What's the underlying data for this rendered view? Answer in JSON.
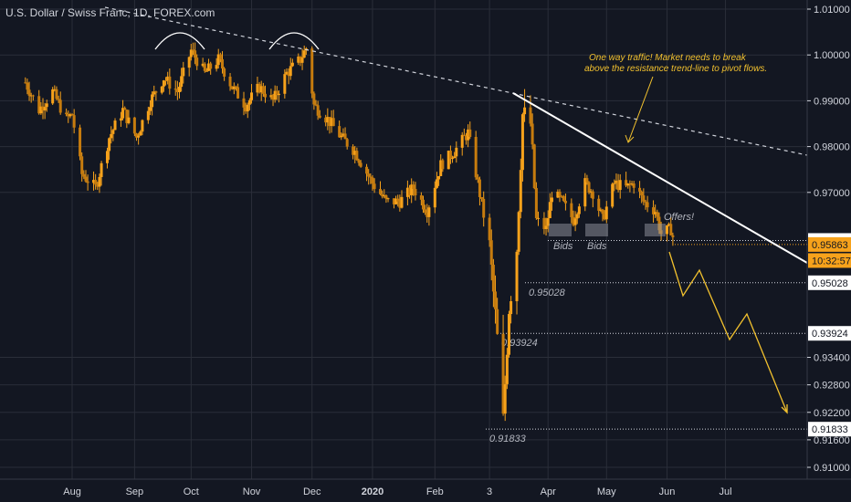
{
  "header": {
    "title": "U.S. Dollar / Swiss Franc, 1D, FOREX.com"
  },
  "price_axis": {
    "ticks": [
      "1.01000",
      "1.00000",
      "0.99000",
      "0.98000",
      "0.97000",
      "0.95951",
      "0.95863",
      "10:32:57",
      "0.95028",
      "0.93924",
      "0.93400",
      "0.92800",
      "0.92200",
      "0.91833",
      "0.91600",
      "0.91000"
    ]
  },
  "time_axis": {
    "labels": [
      "Aug",
      "Sep",
      "Oct",
      "Nov",
      "Dec",
      "2020",
      "Feb",
      "3",
      "Apr",
      "May",
      "Jun",
      "Jul"
    ]
  },
  "annotations": {
    "note_line1": "One way traffic! Market needs to break",
    "note_line2": "above the resistance trend-line to pivot flows.",
    "bids_1": "Bids",
    "bids_2": "Bids",
    "offers": "Offers!"
  },
  "colors": {
    "background": "#131722",
    "candle": "#f7a21b",
    "trendline": "#ffffff",
    "projection": "#f2c12e",
    "current_price_tag": "#f7a21b"
  },
  "chart_data": {
    "type": "candlestick",
    "title": "U.S. Dollar / Swiss Franc, 1D, FOREX.com",
    "ylim": [
      0.9075,
      1.0125
    ],
    "x_ticks": [
      "Aug",
      "Sep",
      "Oct",
      "Nov",
      "Dec",
      "2020",
      "Feb",
      "3",
      "Apr",
      "May",
      "Jun",
      "Jul"
    ],
    "levels": [
      {
        "label": "0.95951",
        "value": 0.95951,
        "line_label": ""
      },
      {
        "label": "0.95028",
        "value": 0.95028,
        "line_label": "0.95028"
      },
      {
        "label": "0.93924",
        "value": 0.93924,
        "line_label": "0.93924"
      },
      {
        "label": "0.91833",
        "value": 0.91833,
        "line_label": "0.91833"
      }
    ],
    "current_price": 0.95863,
    "countdown": "10:32:57",
    "close_path": [
      {
        "date": "2019-07-08",
        "close": 0.994
      },
      {
        "date": "2019-07-15",
        "close": 0.988
      },
      {
        "date": "2019-07-22",
        "close": 0.992
      },
      {
        "date": "2019-07-29",
        "close": 0.986
      },
      {
        "date": "2019-08-01",
        "close": 0.987
      },
      {
        "date": "2019-08-06",
        "close": 0.974
      },
      {
        "date": "2019-08-13",
        "close": 0.971
      },
      {
        "date": "2019-08-20",
        "close": 0.982
      },
      {
        "date": "2019-08-27",
        "close": 0.988
      },
      {
        "date": "2019-09-03",
        "close": 0.982
      },
      {
        "date": "2019-09-10",
        "close": 0.99
      },
      {
        "date": "2019-09-17",
        "close": 0.995
      },
      {
        "date": "2019-09-24",
        "close": 0.992
      },
      {
        "date": "2019-10-01",
        "close": 1.001
      },
      {
        "date": "2019-10-08",
        "close": 0.996
      },
      {
        "date": "2019-10-15",
        "close": 0.999
      },
      {
        "date": "2019-10-22",
        "close": 0.993
      },
      {
        "date": "2019-10-29",
        "close": 0.989
      },
      {
        "date": "2019-11-05",
        "close": 0.993
      },
      {
        "date": "2019-11-12",
        "close": 0.99
      },
      {
        "date": "2019-11-19",
        "close": 0.996
      },
      {
        "date": "2019-11-26",
        "close": 0.999
      },
      {
        "date": "2019-11-29",
        "close": 1.0015
      },
      {
        "date": "2019-12-03",
        "close": 0.989
      },
      {
        "date": "2019-12-10",
        "close": 0.986
      },
      {
        "date": "2019-12-17",
        "close": 0.982
      },
      {
        "date": "2019-12-24",
        "close": 0.979
      },
      {
        "date": "2020-01-02",
        "close": 0.972
      },
      {
        "date": "2020-01-09",
        "close": 0.968
      },
      {
        "date": "2020-01-16",
        "close": 0.968
      },
      {
        "date": "2020-01-23",
        "close": 0.971
      },
      {
        "date": "2020-01-30",
        "close": 0.966
      },
      {
        "date": "2020-02-06",
        "close": 0.976
      },
      {
        "date": "2020-02-13",
        "close": 0.979
      },
      {
        "date": "2020-02-20",
        "close": 0.983
      },
      {
        "date": "2020-02-25",
        "close": 0.972
      },
      {
        "date": "2020-03-02",
        "close": 0.958
      },
      {
        "date": "2020-03-06",
        "close": 0.938
      },
      {
        "date": "2020-03-09",
        "close": 0.92
      },
      {
        "date": "2020-03-12",
        "close": 0.945
      },
      {
        "date": "2020-03-16",
        "close": 0.958
      },
      {
        "date": "2020-03-19",
        "close": 0.987
      },
      {
        "date": "2020-03-23",
        "close": 0.985
      },
      {
        "date": "2020-03-26",
        "close": 0.964
      },
      {
        "date": "2020-03-31",
        "close": 0.962
      },
      {
        "date": "2020-04-03",
        "close": 0.97
      },
      {
        "date": "2020-04-08",
        "close": 0.968
      },
      {
        "date": "2020-04-14",
        "close": 0.964
      },
      {
        "date": "2020-04-20",
        "close": 0.972
      },
      {
        "date": "2020-04-24",
        "close": 0.97
      },
      {
        "date": "2020-04-29",
        "close": 0.964
      },
      {
        "date": "2020-05-05",
        "close": 0.972
      },
      {
        "date": "2020-05-11",
        "close": 0.971
      },
      {
        "date": "2020-05-15",
        "close": 0.972
      },
      {
        "date": "2020-05-20",
        "close": 0.968
      },
      {
        "date": "2020-05-26",
        "close": 0.966
      },
      {
        "date": "2020-05-29",
        "close": 0.961
      },
      {
        "date": "2020-06-03",
        "close": 0.962
      },
      {
        "date": "2020-06-05",
        "close": 0.9586
      }
    ],
    "annotations": [
      "One way traffic! Market needs to break above the resistance trend-line to pivot flows.",
      "Bids",
      "Bids",
      "Offers!"
    ]
  }
}
